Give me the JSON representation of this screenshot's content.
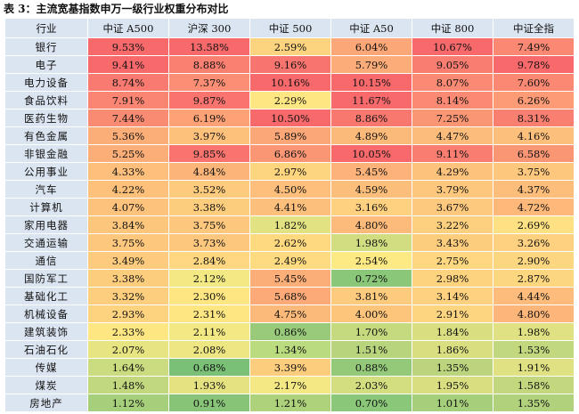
{
  "title": "表 3：主流宽基指数申万一级行业权重分布对比",
  "headers": [
    "行业",
    "中证 A500",
    "沪深 300",
    "中证 500",
    "中证 A50",
    "中证 800",
    "中证全指"
  ],
  "rows": [
    {
      "name": "银行",
      "values": [
        "9.53%",
        "13.58%",
        "2.59%",
        "6.04%",
        "10.67%",
        "7.49%"
      ],
      "colors": [
        "#f8696b",
        "#f8696b",
        "#fcd47f",
        "#fca777",
        "#f8696b",
        "#fb8873"
      ]
    },
    {
      "name": "电子",
      "values": [
        "9.41%",
        "8.88%",
        "9.16%",
        "5.79%",
        "9.05%",
        "9.78%"
      ],
      "colors": [
        "#f8696b",
        "#fa8071",
        "#f8746e",
        "#fcac78",
        "#f97d70",
        "#f8696b"
      ]
    },
    {
      "name": "电力设备",
      "values": [
        "8.74%",
        "7.37%",
        "10.16%",
        "10.15%",
        "8.07%",
        "7.60%"
      ],
      "colors": [
        "#f97a70",
        "#fb8e74",
        "#f8696b",
        "#f8696b",
        "#fa8a73",
        "#fb8873"
      ]
    },
    {
      "name": "食品饮料",
      "values": [
        "7.91%",
        "9.87%",
        "2.29%",
        "11.67%",
        "8.14%",
        "6.26%"
      ],
      "colors": [
        "#fa8572",
        "#f9746e",
        "#fee683",
        "#f8696b",
        "#fa8a73",
        "#fc9b76"
      ]
    },
    {
      "name": "医药生物",
      "values": [
        "7.44%",
        "6.19%",
        "10.50%",
        "8.86%",
        "7.25%",
        "8.31%"
      ],
      "colors": [
        "#fa8b73",
        "#fca276",
        "#f8696b",
        "#f8786f",
        "#fb9675",
        "#f97f70"
      ]
    },
    {
      "name": "有色金属",
      "values": [
        "5.36%",
        "3.97%",
        "5.89%",
        "4.89%",
        "4.47%",
        "4.16%"
      ],
      "colors": [
        "#fcae78",
        "#fdc17c",
        "#fca777",
        "#fcba7a",
        "#fcbc7b",
        "#fdc07c"
      ]
    },
    {
      "name": "非银金融",
      "values": [
        "5.25%",
        "9.85%",
        "6.86%",
        "10.05%",
        "9.11%",
        "6.58%"
      ],
      "colors": [
        "#fcae78",
        "#f9746e",
        "#fb9675",
        "#f8696b",
        "#f97d70",
        "#fb9675"
      ]
    },
    {
      "name": "公用事业",
      "values": [
        "4.33%",
        "4.84%",
        "2.97%",
        "5.45%",
        "4.29%",
        "3.75%"
      ],
      "colors": [
        "#fdbf7b",
        "#fcb579",
        "#fdd57f",
        "#fcb279",
        "#fdc27c",
        "#fdc87d"
      ]
    },
    {
      "name": "汽车",
      "values": [
        "4.22%",
        "3.52%",
        "4.50%",
        "4.59%",
        "3.79%",
        "4.37%"
      ],
      "colors": [
        "#fdc17c",
        "#fdcb7e",
        "#fdbf7b",
        "#fcbf7b",
        "#fdc87d",
        "#fdbd7b"
      ]
    },
    {
      "name": "计算机",
      "values": [
        "4.07%",
        "3.38%",
        "4.41%",
        "3.16%",
        "3.67%",
        "4.72%"
      ],
      "colors": [
        "#fdc27c",
        "#fdcd7e",
        "#fdc07c",
        "#fdd17f",
        "#fdc97e",
        "#fdb87a"
      ]
    },
    {
      "name": "家用电器",
      "values": [
        "3.84%",
        "3.75%",
        "1.82%",
        "4.80%",
        "3.22%",
        "2.69%"
      ],
      "colors": [
        "#fdc67d",
        "#fdc77d",
        "#e2e282",
        "#fcbb7b",
        "#fdd07f",
        "#fee182"
      ]
    },
    {
      "name": "交通运输",
      "values": [
        "3.75%",
        "3.73%",
        "2.62%",
        "1.98%",
        "3.43%",
        "3.26%"
      ],
      "colors": [
        "#fdc77d",
        "#fdc77d",
        "#fed97f",
        "#d1dd80",
        "#fdcd7e",
        "#fdd17f"
      ]
    },
    {
      "name": "通信",
      "values": [
        "3.49%",
        "2.84%",
        "2.49%",
        "2.54%",
        "2.75%",
        "2.90%"
      ],
      "colors": [
        "#fdcb7e",
        "#fed780",
        "#fedb81",
        "#feea84",
        "#fed780",
        "#fdd680"
      ]
    },
    {
      "name": "国防军工",
      "values": [
        "3.38%",
        "2.12%",
        "5.45%",
        "0.72%",
        "2.98%",
        "2.87%"
      ],
      "colors": [
        "#fdcd7e",
        "#f2e884",
        "#fcae78",
        "#8ac779",
        "#fdd37f",
        "#fdd780"
      ]
    },
    {
      "name": "基础化工",
      "values": [
        "3.32%",
        "2.30%",
        "5.68%",
        "3.81%",
        "3.14%",
        "4.44%"
      ],
      "colors": [
        "#fdce7e",
        "#fee683",
        "#fcab78",
        "#fdcb7e",
        "#fdd17f",
        "#fdbc7b"
      ]
    },
    {
      "name": "机械设备",
      "values": [
        "2.93%",
        "2.31%",
        "4.75%",
        "4.00%",
        "2.91%",
        "4.80%"
      ],
      "colors": [
        "#fdd37f",
        "#fee683",
        "#fcba7a",
        "#fdc57c",
        "#fdd580",
        "#fcb679"
      ]
    },
    {
      "name": "建筑装饰",
      "values": [
        "2.33%",
        "2.11%",
        "0.86%",
        "1.70%",
        "1.84%",
        "1.98%"
      ],
      "colors": [
        "#fee683",
        "#f2e884",
        "#99ca7a",
        "#c5d97f",
        "#d9df81",
        "#dfe182"
      ]
    },
    {
      "name": "石油石化",
      "values": [
        "2.07%",
        "2.08%",
        "1.34%",
        "1.51%",
        "1.86%",
        "1.53%"
      ],
      "colors": [
        "#e7e482",
        "#eee683",
        "#badb7e",
        "#b8d47d",
        "#d9df81",
        "#c1d87e"
      ]
    },
    {
      "name": "传媒",
      "values": [
        "1.64%",
        "0.68%",
        "3.39%",
        "0.88%",
        "1.35%",
        "1.91%"
      ],
      "colors": [
        "#cbdc80",
        "#7ac076",
        "#fdcd7e",
        "#94c97a",
        "#bbd47d",
        "#dfe182"
      ]
    },
    {
      "name": "煤炭",
      "values": [
        "1.48%",
        "1.93%",
        "2.17%",
        "2.03%",
        "1.95%",
        "1.58%"
      ],
      "colors": [
        "#c1d87e",
        "#e5e282",
        "#f4e884",
        "#d3de80",
        "#d9df81",
        "#c3d87e"
      ]
    },
    {
      "name": "房地产",
      "values": [
        "1.12%",
        "0.91%",
        "1.21%",
        "0.70%",
        "1.01%",
        "1.35%"
      ],
      "colors": [
        "#a6cf7c",
        "#87c478",
        "#aed27c",
        "#8ac779",
        "#a6cf7c",
        "#b2d17d"
      ]
    }
  ]
}
